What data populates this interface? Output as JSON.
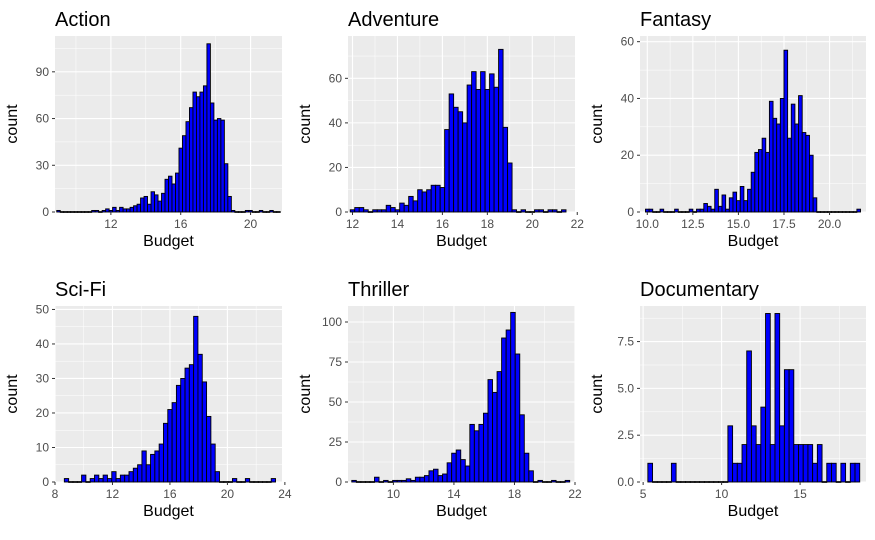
{
  "colors": {
    "panel_background": "#ebebeb",
    "grid_major": "#ffffff",
    "bar_fill": "#0000ff",
    "bar_outline": "#000000",
    "tick_text": "#4d4d4d"
  },
  "chart_data": [
    {
      "type": "bar",
      "title": "Action",
      "xlabel": "Budget",
      "ylabel": "count",
      "xlim": [
        8.8,
        21.8
      ],
      "ylim": [
        0,
        113
      ],
      "xticks": [
        12,
        16,
        20
      ],
      "yticks": [
        0,
        30,
        60,
        90
      ],
      "x": [
        9.0,
        9.2,
        9.4,
        9.6,
        9.8,
        10.0,
        10.2,
        10.4,
        10.6,
        10.8,
        11.0,
        11.2,
        11.4,
        11.6,
        11.8,
        12.0,
        12.2,
        12.4,
        12.6,
        12.8,
        13.0,
        13.2,
        13.4,
        13.6,
        13.8,
        14.0,
        14.2,
        14.4,
        14.6,
        14.8,
        15.0,
        15.2,
        15.4,
        15.6,
        15.8,
        16.0,
        16.2,
        16.4,
        16.6,
        16.8,
        17.0,
        17.2,
        17.4,
        17.6,
        17.8,
        18.0,
        18.2,
        18.4,
        18.6,
        18.8,
        19.0,
        19.2,
        19.4,
        19.6,
        19.8,
        20.0,
        20.2,
        20.4,
        20.6,
        20.8,
        21.0,
        21.2,
        21.4,
        21.6
      ],
      "values": [
        1,
        0,
        0,
        0,
        0,
        0,
        0,
        0,
        0,
        0,
        1,
        1,
        0,
        1,
        2,
        1,
        3,
        1,
        3,
        2,
        2,
        3,
        4,
        5,
        9,
        10,
        5,
        13,
        11,
        7,
        12,
        21,
        23,
        18,
        25,
        41,
        49,
        58,
        67,
        77,
        74,
        77,
        81,
        108,
        70,
        59,
        60,
        59,
        31,
        10,
        1,
        0,
        0,
        0,
        1,
        1,
        0,
        0,
        1,
        0,
        0,
        1,
        0,
        0
      ]
    },
    {
      "type": "bar",
      "title": "Adventure",
      "xlabel": "Budget",
      "ylabel": "count",
      "xlim": [
        11.8,
        21.9
      ],
      "ylim": [
        0,
        79
      ],
      "xticks": [
        12,
        14,
        16,
        18,
        20,
        22
      ],
      "yticks": [
        0,
        20,
        40,
        60
      ],
      "x": [
        12.0,
        12.2,
        12.4,
        12.6,
        12.8,
        13.0,
        13.2,
        13.4,
        13.6,
        13.8,
        14.0,
        14.2,
        14.4,
        14.6,
        14.8,
        15.0,
        15.2,
        15.4,
        15.6,
        15.8,
        16.0,
        16.2,
        16.4,
        16.6,
        16.8,
        17.0,
        17.2,
        17.4,
        17.6,
        17.8,
        18.0,
        18.2,
        18.4,
        18.6,
        18.8,
        19.0,
        19.2,
        19.4,
        19.6,
        19.8,
        20.0,
        20.2,
        20.4,
        20.6,
        20.8,
        21.0,
        21.2,
        21.4
      ],
      "values": [
        1,
        2,
        2,
        1,
        0,
        1,
        1,
        1,
        3,
        2,
        1,
        4,
        3,
        7,
        5,
        10,
        9,
        10,
        12,
        12,
        11,
        37,
        53,
        47,
        45,
        40,
        57,
        63,
        55,
        63,
        55,
        62,
        56,
        73,
        38,
        22,
        1,
        0,
        1,
        0,
        0,
        1,
        1,
        0,
        1,
        1,
        0,
        1
      ]
    },
    {
      "type": "bar",
      "title": "Fantasy",
      "xlabel": "Budget",
      "ylabel": "count",
      "xlim": [
        9.6,
        22.0
      ],
      "ylim": [
        0,
        62
      ],
      "xticks": [
        10.0,
        12.5,
        15.0,
        17.5,
        20.0
      ],
      "yticks": [
        0,
        20,
        40,
        60
      ],
      "x": [
        10.0,
        10.2,
        10.4,
        10.6,
        10.8,
        11.0,
        11.2,
        11.4,
        11.6,
        11.8,
        12.0,
        12.2,
        12.4,
        12.6,
        12.8,
        13.0,
        13.2,
        13.4,
        13.6,
        13.8,
        14.0,
        14.2,
        14.4,
        14.6,
        14.8,
        15.0,
        15.2,
        15.4,
        15.6,
        15.8,
        16.0,
        16.2,
        16.4,
        16.6,
        16.8,
        17.0,
        17.2,
        17.4,
        17.6,
        17.8,
        18.0,
        18.2,
        18.4,
        18.6,
        18.8,
        19.0,
        19.2,
        19.4,
        19.6,
        19.8,
        20.0,
        20.2,
        20.4,
        20.6,
        20.8,
        21.0,
        21.2,
        21.4,
        21.6
      ],
      "values": [
        1,
        1,
        0,
        0,
        1,
        0,
        0,
        0,
        1,
        0,
        0,
        0,
        1,
        0,
        1,
        1,
        3,
        2,
        1,
        8,
        2,
        6,
        1,
        5,
        7,
        4,
        9,
        4,
        8,
        14,
        21,
        22,
        26,
        21,
        39,
        33,
        31,
        40,
        57,
        26,
        38,
        31,
        41,
        28,
        27,
        20,
        5,
        0,
        0,
        0,
        0,
        0,
        0,
        0,
        0,
        0,
        0,
        0,
        1
      ]
    },
    {
      "type": "bar",
      "title": "Sci-Fi",
      "xlabel": "Budget",
      "ylabel": "count",
      "xlim": [
        8.0,
        23.8
      ],
      "ylim": [
        0,
        51
      ],
      "xticks": [
        8,
        12,
        16,
        20,
        24
      ],
      "yticks": [
        0,
        10,
        20,
        30,
        40,
        50
      ],
      "x": [
        8.8,
        9.1,
        9.4,
        9.7,
        10.0,
        10.3,
        10.6,
        10.9,
        11.2,
        11.5,
        11.8,
        12.1,
        12.4,
        12.7,
        13.0,
        13.3,
        13.6,
        13.9,
        14.2,
        14.5,
        14.8,
        15.1,
        15.4,
        15.7,
        16.0,
        16.3,
        16.6,
        16.9,
        17.2,
        17.5,
        17.8,
        18.1,
        18.4,
        18.7,
        19.0,
        19.3,
        19.6,
        19.9,
        20.2,
        20.5,
        20.8,
        21.1,
        21.4,
        21.7,
        22.0,
        22.3,
        22.6,
        22.9,
        23.2
      ],
      "values": [
        1,
        0,
        0,
        0,
        2,
        0,
        1,
        2,
        1,
        2,
        1,
        3,
        1,
        2,
        2,
        3,
        4,
        5,
        9,
        5,
        8,
        9,
        11,
        17,
        21,
        23,
        28,
        30,
        33,
        34,
        48,
        37,
        29,
        19,
        11,
        3,
        0,
        0,
        0,
        1,
        0,
        0,
        1,
        0,
        0,
        0,
        0,
        0,
        1
      ]
    },
    {
      "type": "bar",
      "title": "Thriller",
      "xlabel": "Budget",
      "ylabel": "count",
      "xlim": [
        7.0,
        22.0
      ],
      "ylim": [
        0,
        110
      ],
      "xticks": [
        10,
        14,
        18,
        22
      ],
      "yticks": [
        0,
        25,
        50,
        75,
        100
      ],
      "x": [
        7.4,
        7.7,
        8.0,
        8.3,
        8.6,
        8.9,
        9.2,
        9.5,
        9.8,
        10.1,
        10.4,
        10.7,
        11.0,
        11.3,
        11.6,
        11.9,
        12.2,
        12.5,
        12.8,
        13.1,
        13.4,
        13.7,
        14.0,
        14.3,
        14.6,
        14.9,
        15.2,
        15.5,
        15.8,
        16.1,
        16.4,
        16.7,
        17.0,
        17.3,
        17.6,
        17.9,
        18.2,
        18.5,
        18.8,
        19.1,
        19.4,
        19.7,
        20.0,
        20.3,
        20.6,
        20.9,
        21.2,
        21.5
      ],
      "values": [
        1,
        0,
        0,
        0,
        0,
        3,
        0,
        1,
        0,
        1,
        1,
        1,
        2,
        1,
        3,
        3,
        4,
        7,
        8,
        4,
        5,
        12,
        18,
        20,
        14,
        10,
        36,
        32,
        36,
        43,
        64,
        56,
        69,
        90,
        95,
        106,
        80,
        42,
        18,
        7,
        0,
        1,
        0,
        0,
        1,
        0,
        0,
        1
      ]
    },
    {
      "type": "bar",
      "title": "Documentary",
      "xlabel": "Budget",
      "ylabel": "count",
      "xlim": [
        4.8,
        19.2
      ],
      "ylim": [
        0,
        9.4
      ],
      "xticks": [
        5,
        10,
        15
      ],
      "yticks": [
        0.0,
        2.5,
        5.0,
        7.5
      ],
      "x": [
        5.45,
        5.75,
        6.05,
        6.35,
        6.65,
        6.95,
        7.25,
        7.55,
        7.85,
        8.15,
        8.45,
        8.75,
        9.05,
        9.35,
        9.65,
        9.95,
        10.25,
        10.55,
        10.85,
        11.15,
        11.45,
        11.75,
        12.05,
        12.35,
        12.65,
        12.95,
        13.25,
        13.55,
        13.85,
        14.15,
        14.45,
        14.75,
        15.05,
        15.35,
        15.65,
        15.95,
        16.25,
        16.55,
        16.85,
        17.15,
        17.45,
        17.75,
        18.05,
        18.35,
        18.65
      ],
      "values": [
        1,
        0,
        0,
        0,
        0,
        1,
        0,
        0,
        0,
        0,
        0,
        0,
        0,
        0,
        0,
        0,
        0,
        3,
        1,
        1,
        2,
        7,
        3,
        2,
        4,
        9,
        2,
        9,
        3,
        6,
        6,
        2,
        2,
        2,
        2,
        1,
        2,
        0,
        1,
        1,
        0,
        1,
        0,
        1,
        1
      ]
    }
  ]
}
